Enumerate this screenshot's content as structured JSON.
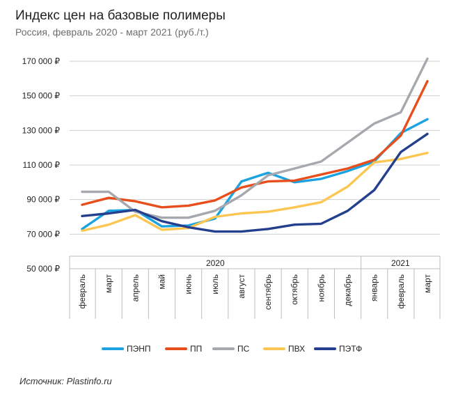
{
  "header": {
    "title": "Индекс цен на базовые полимеры",
    "subtitle": "Россия, февраль 2020 - март 2021 (руб./т.)"
  },
  "source": "Источник: Plastinfo.ru",
  "chart_data": {
    "type": "line",
    "title": "Индекс цен на базовые полимеры",
    "subtitle": "Россия, февраль 2020 - март 2021 (руб./т.)",
    "categories": [
      "февраль",
      "март",
      "апрель",
      "май",
      "июнь",
      "июль",
      "август",
      "сентябрь",
      "октябрь",
      "ноябрь",
      "декабрь",
      "январь",
      "февраль",
      "март"
    ],
    "year_groups": [
      {
        "label": "2020",
        "start": 0,
        "end": 10
      },
      {
        "label": "2021",
        "start": 11,
        "end": 13
      }
    ],
    "y_ticks": [
      50000,
      70000,
      90000,
      110000,
      130000,
      150000,
      170000
    ],
    "y_tick_labels": [
      "50 000 ₽",
      "70 000 ₽",
      "90 000 ₽",
      "110 000 ₽",
      "130 000 ₽",
      "150 000 ₽",
      "170 000 ₽"
    ],
    "ylim": [
      50000,
      170000
    ],
    "grid": true,
    "legend_position": "bottom",
    "series": [
      {
        "name": "ПЭНП",
        "color": "#1aa3e0",
        "values": [
          73000,
          83500,
          84000,
          74500,
          75000,
          79000,
          100500,
          105500,
          100000,
          102000,
          106500,
          112000,
          128500,
          136500
        ]
      },
      {
        "name": "ПП",
        "color": "#e84e1b",
        "values": [
          87000,
          91000,
          89000,
          85500,
          86500,
          89500,
          97000,
          100500,
          101000,
          104500,
          108000,
          113000,
          127000,
          158500
        ]
      },
      {
        "name": "ПС",
        "color": "#a5a8ad",
        "values": [
          94500,
          94500,
          83000,
          79500,
          79500,
          83500,
          92500,
          104000,
          108000,
          112000,
          123000,
          134000,
          140500,
          171500
        ]
      },
      {
        "name": "ПВХ",
        "color": "#fcc652",
        "values": [
          72000,
          75500,
          81000,
          72500,
          73500,
          80000,
          82000,
          83000,
          85500,
          88500,
          97500,
          111500,
          113500,
          117000
        ]
      },
      {
        "name": "ПЭТФ",
        "color": "#233f8e",
        "values": [
          80500,
          82000,
          84000,
          77500,
          74000,
          71500,
          71500,
          73000,
          75500,
          76000,
          83500,
          95500,
          117500,
          128000
        ]
      }
    ]
  }
}
